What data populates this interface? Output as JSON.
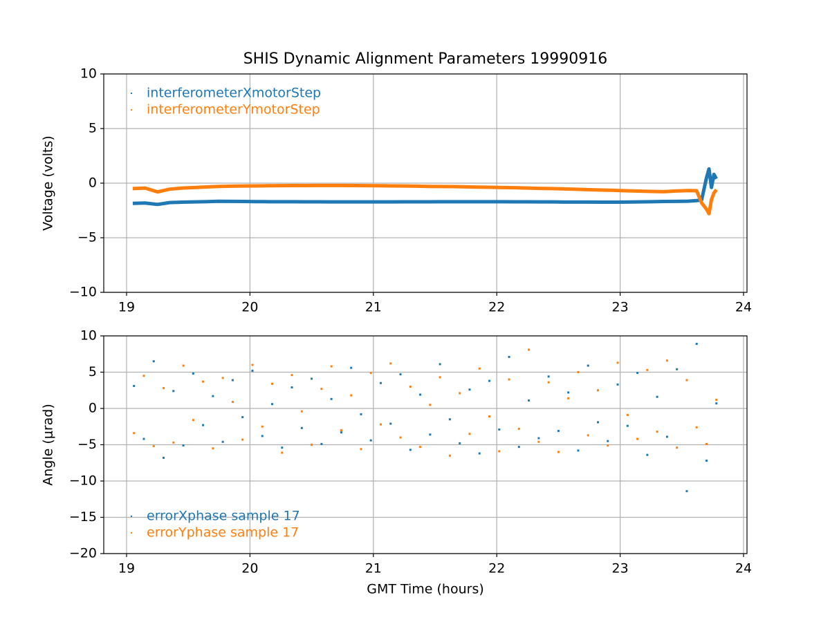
{
  "chart_data": [
    {
      "type": "line",
      "title": "SHIS Dynamic Alignment Parameters 19990916",
      "ylabel": "Voltage (volts)",
      "x": [
        19.05,
        19.15,
        19.25,
        19.35,
        19.45,
        19.55,
        19.65,
        19.75,
        19.85,
        19.95,
        20.05,
        20.15,
        20.25,
        20.35,
        20.45,
        20.55,
        20.65,
        20.75,
        20.85,
        20.95,
        21.05,
        21.15,
        21.25,
        21.35,
        21.45,
        21.55,
        21.65,
        21.75,
        21.85,
        21.95,
        22.05,
        22.15,
        22.25,
        22.35,
        22.45,
        22.55,
        22.65,
        22.75,
        22.85,
        22.95,
        23.05,
        23.15,
        23.25,
        23.35,
        23.45,
        23.55,
        23.62,
        23.66,
        23.7,
        23.72,
        23.74,
        23.76,
        23.78
      ],
      "series": [
        {
          "name": "interferometerXmotorStep",
          "color": "#1f77b4",
          "values": [
            -1.85,
            -1.82,
            -1.95,
            -1.78,
            -1.74,
            -1.72,
            -1.69,
            -1.66,
            -1.67,
            -1.68,
            -1.69,
            -1.7,
            -1.7,
            -1.7,
            -1.71,
            -1.71,
            -1.72,
            -1.72,
            -1.72,
            -1.72,
            -1.72,
            -1.72,
            -1.71,
            -1.71,
            -1.71,
            -1.7,
            -1.7,
            -1.7,
            -1.7,
            -1.7,
            -1.7,
            -1.71,
            -1.71,
            -1.72,
            -1.72,
            -1.73,
            -1.73,
            -1.73,
            -1.74,
            -1.74,
            -1.73,
            -1.72,
            -1.7,
            -1.68,
            -1.67,
            -1.65,
            -1.6,
            -1.55,
            0.5,
            1.3,
            -0.4,
            0.8,
            0.4
          ]
        },
        {
          "name": "interferometerYmotorStep",
          "color": "#ff7f0e",
          "values": [
            -0.5,
            -0.45,
            -0.8,
            -0.55,
            -0.45,
            -0.4,
            -0.35,
            -0.3,
            -0.28,
            -0.26,
            -0.25,
            -0.24,
            -0.23,
            -0.22,
            -0.22,
            -0.21,
            -0.21,
            -0.21,
            -0.22,
            -0.23,
            -0.24,
            -0.25,
            -0.26,
            -0.28,
            -0.3,
            -0.31,
            -0.32,
            -0.34,
            -0.36,
            -0.38,
            -0.4,
            -0.42,
            -0.45,
            -0.48,
            -0.5,
            -0.53,
            -0.56,
            -0.6,
            -0.63,
            -0.66,
            -0.7,
            -0.73,
            -0.76,
            -0.78,
            -0.72,
            -0.68,
            -0.7,
            -1.8,
            -2.4,
            -2.8,
            -1.5,
            -0.9,
            -0.6
          ]
        }
      ],
      "xlim": [
        18.815,
        24.028
      ],
      "xticks": [
        19,
        20,
        21,
        22,
        23,
        24
      ],
      "ylim": [
        -10,
        10
      ],
      "yticks": [
        {
          "value": -10,
          "label": "−10"
        },
        {
          "value": -5,
          "label": "−5"
        },
        0,
        5,
        10
      ],
      "grid": true,
      "legend": "upper left"
    },
    {
      "type": "scatter",
      "ylabel": "Angle (μrad)",
      "xlabel": "GMT Time (hours)",
      "x": [
        19.06,
        19.14,
        19.22,
        19.3,
        19.38,
        19.46,
        19.54,
        19.62,
        19.7,
        19.78,
        19.86,
        19.94,
        20.02,
        20.1,
        20.18,
        20.26,
        20.34,
        20.42,
        20.5,
        20.58,
        20.66,
        20.74,
        20.82,
        20.9,
        20.98,
        21.06,
        21.14,
        21.22,
        21.3,
        21.38,
        21.46,
        21.54,
        21.62,
        21.7,
        21.78,
        21.86,
        21.94,
        22.02,
        22.1,
        22.18,
        22.26,
        22.34,
        22.42,
        22.5,
        22.58,
        22.66,
        22.74,
        22.82,
        22.9,
        22.98,
        23.06,
        23.14,
        23.22,
        23.3,
        23.38,
        23.46,
        23.54,
        23.62,
        23.7,
        23.78
      ],
      "series": [
        {
          "name": "errorXphase sample 17",
          "color": "#1f77b4",
          "values": [
            3.1,
            -4.2,
            6.5,
            -6.8,
            2.4,
            -5.1,
            4.8,
            -2.3,
            1.7,
            -4.6,
            3.9,
            -1.2,
            5.2,
            -3.8,
            0.6,
            -5.4,
            2.9,
            -2.7,
            4.1,
            -4.9,
            1.3,
            -3.3,
            5.6,
            -0.8,
            -4.4,
            3.5,
            -2.1,
            4.7,
            -5.7,
            1.9,
            -3.6,
            6.1,
            -1.5,
            -4.8,
            2.6,
            -6.2,
            3.8,
            -2.9,
            7.1,
            -5.3,
            1.1,
            -4.1,
            4.4,
            -3.1,
            2.2,
            -5.8,
            5.9,
            -1.9,
            -4.5,
            3.3,
            -2.4,
            4.9,
            -6.4,
            1.6,
            -3.9,
            5.4,
            -11.4,
            8.9,
            -7.2,
            0.7
          ]
        },
        {
          "name": "errorYphase sample 17",
          "color": "#ff7f0e",
          "values": [
            -3.4,
            4.5,
            -5.2,
            2.8,
            -4.7,
            5.9,
            -1.6,
            3.7,
            -5.5,
            4.2,
            0.9,
            -4.3,
            6.0,
            -2.5,
            3.4,
            -6.1,
            4.6,
            -0.4,
            -5.0,
            2.7,
            5.8,
            -3.0,
            1.8,
            -5.6,
            4.9,
            -2.2,
            6.2,
            -4.0,
            3.0,
            -5.3,
            0.5,
            4.3,
            -6.5,
            2.1,
            -3.5,
            5.5,
            -1.1,
            -5.9,
            4.0,
            -2.8,
            8.1,
            -4.6,
            3.6,
            -6.0,
            1.4,
            5.0,
            -3.7,
            2.5,
            -5.1,
            6.3,
            -0.9,
            -4.2,
            5.3,
            -3.2,
            6.6,
            -5.4,
            3.9,
            -2.6,
            -4.9,
            1.2
          ]
        }
      ],
      "xlim": [
        18.815,
        24.028
      ],
      "xticks": [
        19,
        20,
        21,
        22,
        23,
        24
      ],
      "ylim": [
        -20,
        10
      ],
      "yticks": [
        {
          "value": -20,
          "label": "−20"
        },
        {
          "value": -15,
          "label": "−15"
        },
        {
          "value": -10,
          "label": "−10"
        },
        {
          "value": -5,
          "label": "−5"
        },
        0,
        5,
        10
      ],
      "grid": true,
      "legend": "lower left"
    }
  ]
}
